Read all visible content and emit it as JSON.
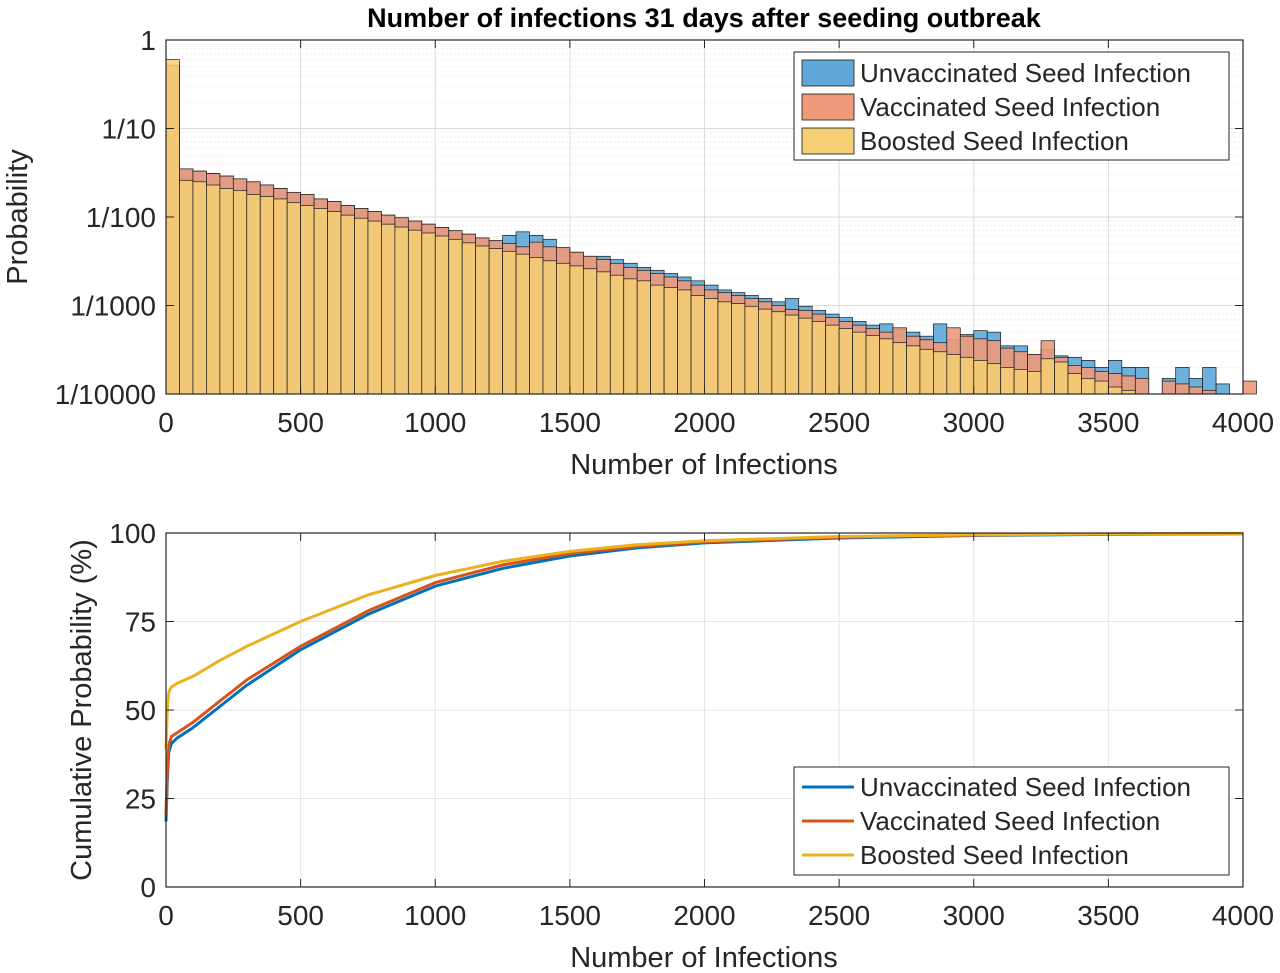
{
  "colors": {
    "unvaccinated": "#0072BD",
    "vaccinated": "#D95319",
    "boosted": "#EDB120",
    "hist_unvaccinated": "#5EA7D8",
    "hist_vaccinated": "#EE9A7A",
    "hist_boosted": "#F4CF73",
    "hist_overlap": "#D59A3E",
    "hist_edge": "#1a1a1a",
    "axis": "#262626",
    "grid": "#dcdcdc"
  },
  "chart_data": [
    {
      "type": "bar",
      "title": "Number of infections 31 days after seeding outbreak",
      "xlabel": "Number of Infections",
      "ylabel": "Probability",
      "yscale": "log",
      "xlim": [
        0,
        4000
      ],
      "ylim": [
        0.0001,
        1
      ],
      "xticks": [
        0,
        500,
        1000,
        1500,
        2000,
        2500,
        3000,
        3500,
        4000
      ],
      "xtick_labels": [
        "0",
        "500",
        "1000",
        "1500",
        "2000",
        "2500",
        "3000",
        "3500",
        "4000"
      ],
      "yticks": [
        0.0001,
        0.001,
        0.01,
        0.1,
        1
      ],
      "ytick_labels": [
        "1/10000",
        "1/1000",
        "1/100",
        "1/10",
        "1"
      ],
      "grid": true,
      "legend_position": "top-right",
      "bin_width": 50,
      "series": [
        {
          "name": "Unvaccinated Seed Infection",
          "key": "unvaccinated",
          "style": "bar",
          "values": [
            0.5,
            0.035,
            0.033,
            0.031,
            0.029,
            0.027,
            0.025,
            0.023,
            0.021,
            0.019,
            0.018,
            0.016,
            0.015,
            0.0135,
            0.0125,
            0.0115,
            0.0105,
            0.0098,
            0.009,
            0.0083,
            0.0076,
            0.007,
            0.0064,
            0.0058,
            0.0054,
            0.0062,
            0.0068,
            0.0062,
            0.0056,
            0.0045,
            0.004,
            0.0036,
            0.0036,
            0.0033,
            0.003,
            0.0027,
            0.0025,
            0.0023,
            0.0021,
            0.0019,
            0.0017,
            0.0015,
            0.0014,
            0.0013,
            0.0012,
            0.0011,
            0.0012,
            0.00098,
            0.00088,
            0.0008,
            0.00073,
            0.00066,
            0.0006,
            0.00062,
            0.00054,
            0.0005,
            0.00045,
            0.00062,
            0.00041,
            0.00047,
            0.00052,
            0.0005,
            0.00035,
            0.00035,
            0.00028,
            0.00032,
            0.00027,
            0.00026,
            0.00024,
            0.0002,
            0.00024,
            0.0002,
            0.0002,
            0,
            0.00015,
            0.0002,
            0.00015,
            0.0002,
            0.00013,
            0,
            0
          ]
        },
        {
          "name": "Vaccinated Seed Infection",
          "key": "vaccinated",
          "style": "bar",
          "values": [
            0.52,
            0.035,
            0.033,
            0.031,
            0.029,
            0.027,
            0.025,
            0.023,
            0.021,
            0.019,
            0.018,
            0.016,
            0.015,
            0.0135,
            0.0125,
            0.0115,
            0.0105,
            0.0098,
            0.009,
            0.0083,
            0.0076,
            0.007,
            0.0064,
            0.0058,
            0.0054,
            0.005,
            0.0046,
            0.0052,
            0.0046,
            0.0045,
            0.004,
            0.0036,
            0.0033,
            0.003,
            0.0027,
            0.0025,
            0.0023,
            0.0021,
            0.0019,
            0.0017,
            0.0015,
            0.0014,
            0.0013,
            0.0012,
            0.0011,
            0.001,
            0.0009,
            0.00088,
            0.0008,
            0.00073,
            0.00066,
            0.0006,
            0.00055,
            0.0005,
            0.00056,
            0.00045,
            0.00041,
            0.00038,
            0.00056,
            0.00045,
            0.00042,
            0.0004,
            0.00033,
            0.0003,
            0.00028,
            0.0004,
            0.00026,
            0.00021,
            0.0002,
            0.00018,
            0.00017,
            0.00016,
            0.00015,
            0,
            0.00014,
            0.00013,
            0.00012,
            0.00011,
            0,
            0,
            0.00014
          ]
        },
        {
          "name": "Boosted Seed Infection",
          "key": "boosted",
          "style": "bar",
          "values": [
            0.6,
            0.026,
            0.025,
            0.023,
            0.021,
            0.02,
            0.018,
            0.017,
            0.016,
            0.0145,
            0.0135,
            0.0125,
            0.0115,
            0.0105,
            0.0097,
            0.009,
            0.0083,
            0.0077,
            0.0071,
            0.0066,
            0.0061,
            0.0056,
            0.0051,
            0.0047,
            0.0044,
            0.0041,
            0.0038,
            0.0035,
            0.0032,
            0.003,
            0.0028,
            0.0026,
            0.0024,
            0.0022,
            0.002,
            0.0019,
            0.0017,
            0.0016,
            0.0015,
            0.0013,
            0.0012,
            0.0011,
            0.00105,
            0.00098,
            0.00091,
            0.00085,
            0.00078,
            0.00072,
            0.00066,
            0.0006,
            0.00055,
            0.0005,
            0.00046,
            0.00042,
            0.00038,
            0.00035,
            0.00032,
            0.0003,
            0.00028,
            0.00026,
            0.00024,
            0.00022,
            0.0002,
            0.00019,
            0.00018,
            0.00025,
            0.00023,
            0.00017,
            0.00015,
            0.00014,
            0.00012,
            0.00011,
            0.0001,
            0,
            0,
            0,
            0,
            0,
            0,
            0,
            0
          ]
        }
      ]
    },
    {
      "type": "line",
      "title": "",
      "xlabel": "Number of Infections",
      "ylabel": "Cumulative Probability (%)",
      "xlim": [
        0,
        4000
      ],
      "ylim": [
        0,
        100
      ],
      "xticks": [
        0,
        500,
        1000,
        1500,
        2000,
        2500,
        3000,
        3500,
        4000
      ],
      "yticks": [
        0,
        25,
        50,
        75,
        100
      ],
      "grid": true,
      "legend_position": "bottom-right",
      "x": [
        0,
        5,
        10,
        20,
        40,
        100,
        200,
        300,
        500,
        750,
        1000,
        1250,
        1500,
        1750,
        2000,
        2500,
        3000,
        3500,
        4000
      ],
      "series": [
        {
          "name": "Unvaccinated Seed Infection",
          "key": "unvaccinated",
          "values": [
            18.5,
            30,
            38,
            40.5,
            42,
            45,
            51,
            57,
            67,
            77,
            85,
            90,
            93.5,
            95.8,
            97.2,
            98.6,
            99.3,
            99.6,
            99.8
          ]
        },
        {
          "name": "Vaccinated Seed Infection",
          "key": "vaccinated",
          "values": [
            20.5,
            33,
            40,
            42.5,
            43.5,
            46.5,
            52.5,
            58.5,
            68,
            78,
            86,
            91,
            94.2,
            96.2,
            97.5,
            98.8,
            99.4,
            99.7,
            99.85
          ]
        },
        {
          "name": "Boosted Seed Infection",
          "key": "boosted",
          "values": [
            39,
            50,
            55,
            56.5,
            57.5,
            59.5,
            64,
            68,
            75,
            82.5,
            88,
            92,
            94.8,
            96.7,
            97.8,
            99,
            99.5,
            99.75,
            99.9
          ]
        }
      ]
    }
  ]
}
